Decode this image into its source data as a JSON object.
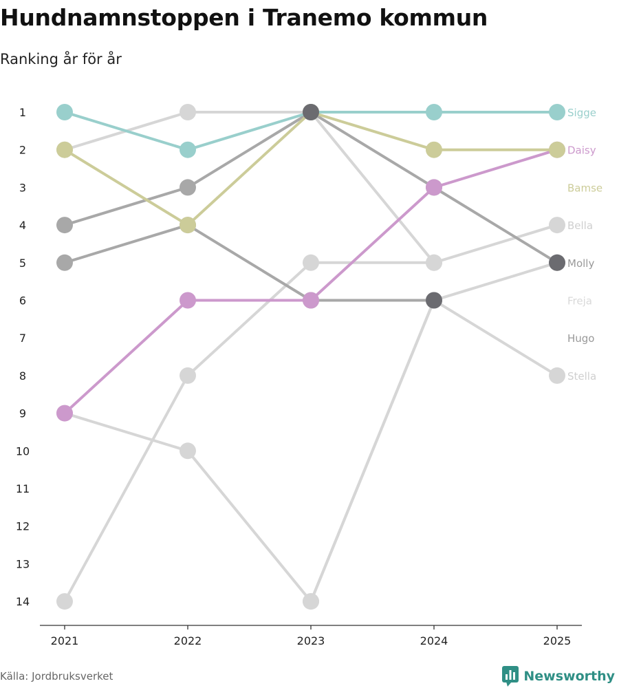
{
  "title": "Hundnamnstoppen i Tranemo kommun",
  "subtitle": "Ranking år för år",
  "source": "Källa: Jordbruksverket",
  "brand": {
    "name": "Newsworthy",
    "icon": "bar-chart-speech-icon",
    "color": "#2f8f85"
  },
  "colors": {
    "Sigge": "#99cfcc",
    "Daisy": "#cc99cc",
    "Bamse": "#cccc99",
    "Molly": "#6b6b70",
    "Bella": "#d6d6d6",
    "Freja": "#d6d6d6",
    "Hugo": "#a8a8a8",
    "Stella": "#d6d6d6"
  },
  "chart_data": {
    "type": "line",
    "title": "Hundnamnstoppen i Tranemo kommun",
    "subtitle": "Ranking år för år",
    "x": [
      "2021",
      "2022",
      "2023",
      "2024",
      "2025"
    ],
    "y_ticks": [
      "1",
      "2",
      "3",
      "4",
      "5",
      "6",
      "7",
      "8",
      "9",
      "10",
      "11",
      "12",
      "13",
      "14"
    ],
    "ylim": [
      1,
      14
    ],
    "y_reversed": true,
    "xlabel": "",
    "ylabel": "",
    "series": [
      {
        "name": "Sigge",
        "color": "#99cfcc",
        "label_color": "#99cfcc",
        "values": [
          1,
          2,
          1,
          1,
          1
        ]
      },
      {
        "name": "Daisy",
        "color": "#cc99cc",
        "label_color": "#cc99cc",
        "values": [
          9,
          6,
          6,
          3,
          2
        ]
      },
      {
        "name": "Bamse",
        "color": "#cccc99",
        "label_color": "#cccc99",
        "values": [
          2,
          4,
          1,
          2,
          2
        ]
      },
      {
        "name": "Bella",
        "color": "#d6d6d6",
        "label_color": "#cfcfcf",
        "values": [
          14,
          8,
          5,
          5,
          4
        ]
      },
      {
        "name": "Molly",
        "color": "#a8a8a8",
        "label_color": "#999999",
        "values": [
          4,
          3,
          1,
          3,
          5
        ]
      },
      {
        "name": "Freja",
        "color": "#d6d6d6",
        "label_color": "#d9d9d9",
        "values": [
          2,
          1,
          1,
          5,
          null
        ]
      },
      {
        "name": "Hugo",
        "color": "#a8a8a8",
        "label_color": "#999999",
        "values": [
          5,
          4,
          6,
          6,
          null
        ]
      },
      {
        "name": "Stella",
        "color": "#d6d6d6",
        "label_color": "#cfcfcf",
        "values": [
          9,
          10,
          14,
          6,
          8
        ]
      },
      {
        "name": "",
        "color": "#d6d6d6",
        "label_color": "#d6d6d6",
        "values": [
          null,
          null,
          14,
          6,
          5
        ]
      }
    ],
    "highlight_markers": [
      {
        "x": "2023",
        "y": 1,
        "color": "#6b6b70"
      },
      {
        "x": "2024",
        "y": 6,
        "color": "#6b6b70"
      },
      {
        "x": "2025",
        "y": 5,
        "color": "#6b6b70"
      }
    ]
  }
}
